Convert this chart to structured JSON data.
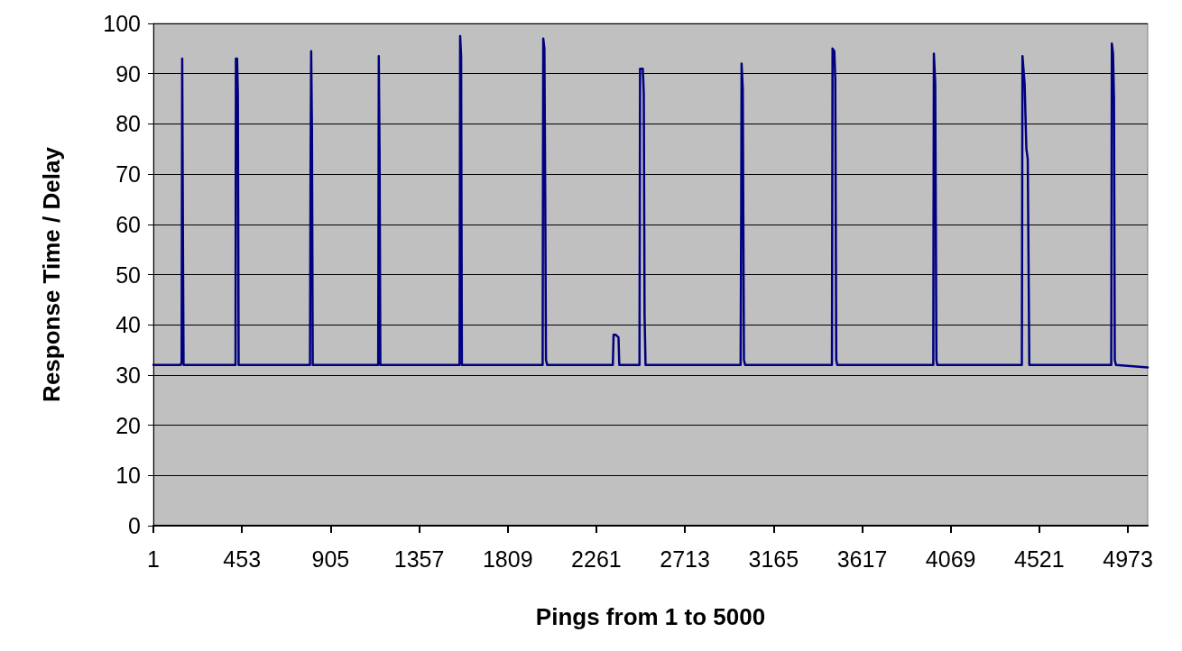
{
  "chart_data": {
    "type": "line",
    "xlabel": "Pings from 1 to 5000",
    "ylabel": "Response Time / Delay",
    "x": [
      1,
      140,
      145,
      148,
      150,
      152,
      155,
      420,
      422,
      428,
      432,
      436,
      800,
      803,
      806,
      810,
      814,
      1148,
      1151,
      1155,
      1159,
      1563,
      1566,
      1571,
      1575,
      1987,
      1990,
      1996,
      2000,
      2004,
      2010,
      2345,
      2349,
      2360,
      2374,
      2378,
      2481,
      2484,
      2498,
      2503,
      2507,
      2512,
      2997,
      3000,
      3002,
      3008,
      3014,
      3020,
      3463,
      3466,
      3475,
      3480,
      3485,
      3490,
      3980,
      3983,
      3990,
      3996,
      4000,
      4432,
      4435,
      4446,
      4455,
      4462,
      4470,
      4888,
      4891,
      4897,
      4902,
      4906,
      4912,
      5074
    ],
    "series": [
      {
        "color": "#000080",
        "values": [
          32,
          32,
          32.5,
          93,
          93,
          55,
          32,
          32,
          93,
          93,
          86,
          32,
          32,
          73,
          94.5,
          79,
          32,
          32,
          93.5,
          74,
          32,
          32,
          97.5,
          93.5,
          32,
          32,
          97,
          95,
          67,
          33,
          32,
          32,
          38,
          38,
          37.5,
          32,
          32,
          91,
          91,
          86,
          42,
          32,
          32,
          62,
          92,
          87,
          33,
          32,
          32,
          95,
          94.5,
          89,
          33,
          32,
          32,
          94,
          88,
          33,
          32,
          32,
          93.5,
          88,
          75,
          73,
          32,
          32,
          96,
          94,
          85,
          33,
          32,
          31.5
        ]
      }
    ],
    "xlim": [
      1,
      5074
    ],
    "xticks": [
      1,
      453,
      905,
      1357,
      1809,
      2261,
      2713,
      3165,
      3617,
      4069,
      4521,
      4973
    ],
    "ylim": [
      0,
      100
    ],
    "yticks": [
      0,
      10,
      20,
      30,
      40,
      50,
      60,
      70,
      80,
      90,
      100
    ],
    "grid": "y",
    "marker": "none",
    "line_style": "solid"
  }
}
